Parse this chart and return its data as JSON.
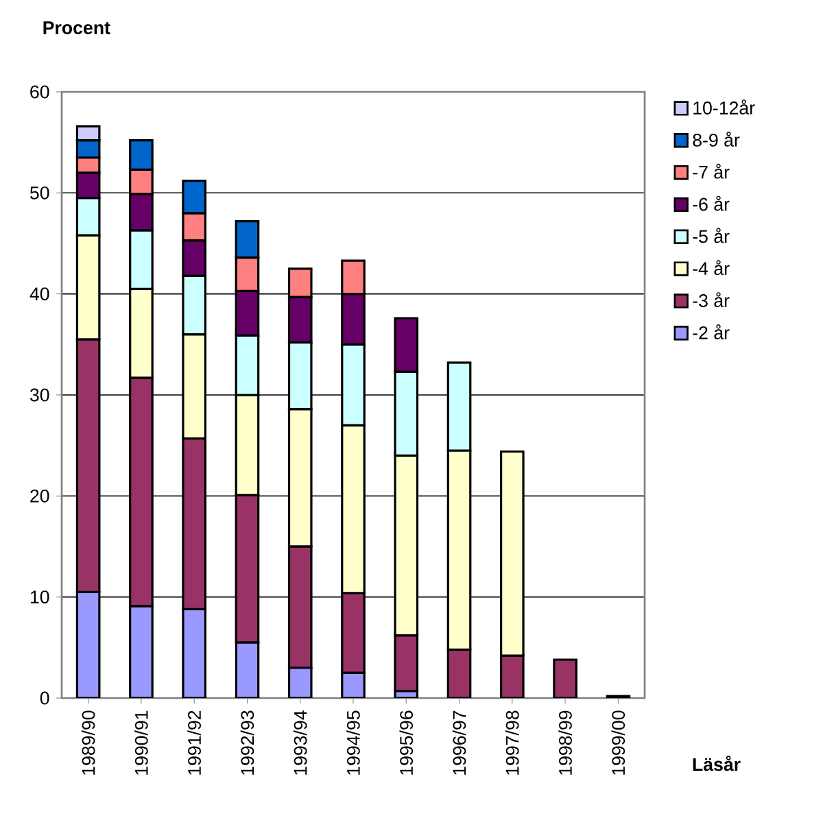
{
  "chart_data": {
    "type": "bar",
    "stacked": true,
    "xlabel": "Läsår",
    "ylabel": "Procent",
    "categories": [
      "1989/90",
      "1990/91",
      "1991/92",
      "1992/93",
      "1993/94",
      "1994/95",
      "1995/96",
      "1996/97",
      "1997/98",
      "1998/99",
      "1999/00"
    ],
    "series": [
      {
        "name": "-2 år",
        "color": "#9999ff",
        "values": [
          10.5,
          9.1,
          8.8,
          5.5,
          3,
          2.5,
          0.7,
          null,
          null,
          null,
          null
        ]
      },
      {
        "name": "-3 år",
        "color": "#993366",
        "values": [
          25,
          22.6,
          16.9,
          14.6,
          12,
          7.9,
          5.5,
          4.8,
          4.2,
          3.8,
          0.2
        ]
      },
      {
        "name": "-4 år",
        "color": "#ffffcc",
        "values": [
          10.3,
          8.8,
          10.3,
          9.9,
          13.6,
          16.6,
          17.8,
          19.7,
          20.2,
          null,
          null
        ]
      },
      {
        "name": "-5 år",
        "color": "#ccffff",
        "values": [
          3.7,
          5.8,
          5.8,
          5.9,
          6.6,
          8,
          8.3,
          8.7,
          null,
          null,
          null
        ]
      },
      {
        "name": "-6 år",
        "color": "#660066",
        "values": [
          2.5,
          3.6,
          3.5,
          4.4,
          4.5,
          5,
          5.3,
          null,
          null,
          null,
          null
        ]
      },
      {
        "name": "-7 år",
        "color": "#ff8080",
        "values": [
          1.5,
          2.4,
          2.7,
          3.3,
          2.8,
          3.3,
          null,
          null,
          null,
          null,
          null
        ]
      },
      {
        "name": "8-9 år",
        "color": "#0066cc",
        "values": [
          1.7,
          2.9,
          3.2,
          3.6,
          null,
          null,
          null,
          null,
          null,
          null,
          null
        ]
      },
      {
        "name": "10-12år",
        "color": "#ccccff",
        "values": [
          1.4,
          null,
          null,
          null,
          null,
          null,
          null,
          null,
          null,
          null,
          null
        ]
      }
    ],
    "ylim": [
      0,
      60
    ],
    "yticks": [
      0,
      10,
      20,
      30,
      40,
      50,
      60
    ],
    "grid": "y",
    "legend": "right"
  }
}
